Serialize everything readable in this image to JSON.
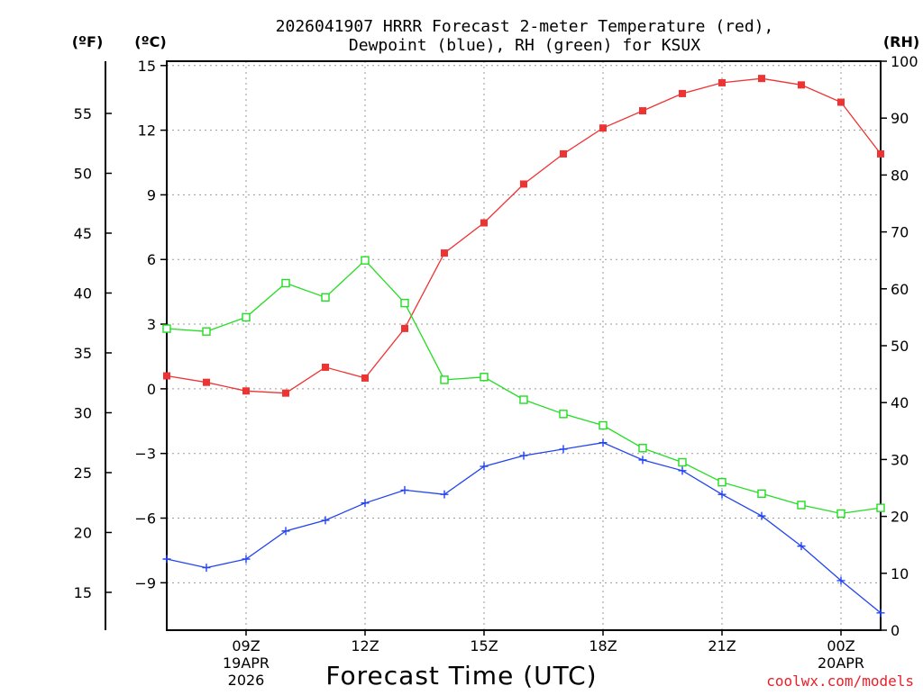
{
  "chart_data": {
    "type": "line",
    "title_line1": "2026041907 HRRR Forecast 2-meter Temperature (red),",
    "title_line2": "Dewpoint (blue), RH (green) for KSUX",
    "xlabel": "Forecast Time (UTC)",
    "unit_left_f": "(ºF)",
    "unit_left_c": "(ºC)",
    "unit_right_rh": "(RH)",
    "credit": "coolwx.com/models",
    "hours": [
      7,
      8,
      9,
      10,
      11,
      12,
      13,
      14,
      15,
      16,
      17,
      18,
      19,
      20,
      21,
      22,
      23,
      24,
      25
    ],
    "x_ticks": [
      {
        "hour": 9,
        "label": "09Z",
        "sub1": "19APR",
        "sub2": "2026"
      },
      {
        "hour": 12,
        "label": "12Z",
        "sub1": "",
        "sub2": ""
      },
      {
        "hour": 15,
        "label": "15Z",
        "sub1": "",
        "sub2": ""
      },
      {
        "hour": 18,
        "label": "18Z",
        "sub1": "",
        "sub2": ""
      },
      {
        "hour": 21,
        "label": "21Z",
        "sub1": "",
        "sub2": ""
      },
      {
        "hour": 24,
        "label": "00Z",
        "sub1": "20APR",
        "sub2": ""
      }
    ],
    "celsius_axis": {
      "range": [
        -11.2,
        15.2
      ],
      "ticks": [
        15,
        12,
        9,
        6,
        3,
        0,
        -3,
        -6,
        -9
      ],
      "labels": [
        "15",
        "12",
        "9",
        "6",
        "3",
        "0",
        "−3",
        "−6",
        "−9"
      ]
    },
    "fahrenheit_axis": {
      "ticks": [
        55,
        50,
        45,
        40,
        35,
        30,
        25,
        20,
        15
      ],
      "labels": [
        "55",
        "50",
        "45",
        "40",
        "35",
        "30",
        "25",
        "20",
        "15"
      ]
    },
    "rh_axis": {
      "range": [
        0,
        100
      ],
      "ticks": [
        0,
        10,
        20,
        30,
        40,
        50,
        60,
        70,
        80,
        90,
        100
      ],
      "labels": [
        "0",
        "10",
        "20",
        "30",
        "40",
        "50",
        "60",
        "70",
        "80",
        "90",
        "100"
      ]
    },
    "series": [
      {
        "name": "Temperature",
        "unit": "C",
        "color": "#ee3333",
        "marker": "filled-square",
        "values": [
          0.6,
          0.3,
          -0.1,
          -0.2,
          1.0,
          0.5,
          2.8,
          6.3,
          7.7,
          9.5,
          10.9,
          12.1,
          12.9,
          13.7,
          14.2,
          14.4,
          14.1,
          13.3,
          10.9
        ]
      },
      {
        "name": "Dewpoint",
        "unit": "C",
        "color": "#2244ee",
        "marker": "plus",
        "values": [
          -7.9,
          -8.3,
          -7.9,
          -6.6,
          -6.1,
          -5.3,
          -4.7,
          -4.9,
          -3.6,
          -3.1,
          -2.8,
          -2.5,
          -3.3,
          -3.8,
          -4.9,
          -5.9,
          -7.3,
          -8.9,
          -10.4
        ]
      },
      {
        "name": "RH",
        "unit": "%",
        "color": "#22dd22",
        "marker": "open-square",
        "values": [
          53,
          52.5,
          55,
          61,
          58.5,
          65,
          57.5,
          44,
          44.5,
          40.5,
          38,
          36,
          32,
          29.5,
          26,
          24,
          22,
          20.5,
          21.5
        ]
      }
    ]
  }
}
